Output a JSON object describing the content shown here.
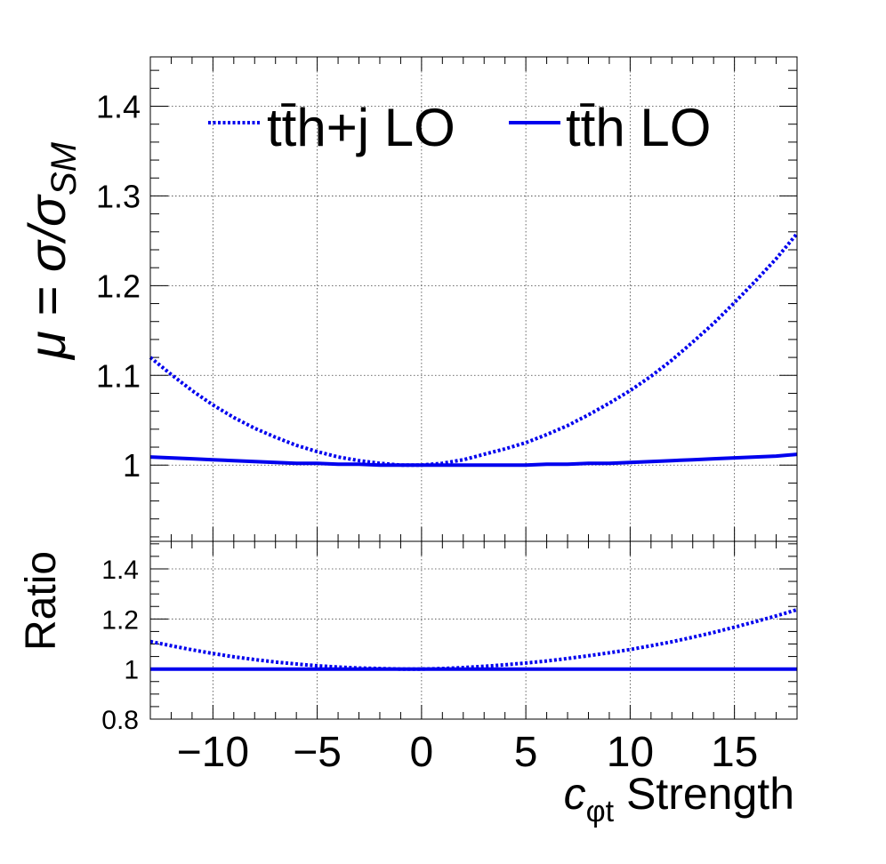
{
  "chart_data": [
    {
      "type": "line",
      "panel": "top",
      "ylabel_main": "μ = σ/σ",
      "ylabel_sub": "SM",
      "xlim": [
        -13,
        18
      ],
      "ylim": [
        0.915,
        1.455
      ],
      "yticks": [
        1,
        1.1,
        1.2,
        1.3,
        1.4
      ],
      "ytick_labels": [
        "1",
        "1.1",
        "1.2",
        "1.3",
        "1.4"
      ],
      "grid": true,
      "legend_position": "top",
      "series": [
        {
          "name": "tt̄h+j LO",
          "style": "dotted",
          "color": "#0000ee",
          "x": [
            -13,
            -12,
            -11,
            -10,
            -9,
            -8,
            -7,
            -6,
            -5,
            -4,
            -3,
            -2,
            -1,
            0,
            1,
            2,
            3,
            4,
            5,
            6,
            7,
            8,
            9,
            10,
            11,
            12,
            13,
            14,
            15,
            16,
            17,
            18
          ],
          "y": [
            1.12,
            1.101,
            1.083,
            1.067,
            1.053,
            1.041,
            1.031,
            1.022,
            1.015,
            1.009,
            1.005,
            1.002,
            1.0,
            1.0,
            1.002,
            1.006,
            1.012,
            1.018,
            1.025,
            1.034,
            1.044,
            1.056,
            1.069,
            1.083,
            1.099,
            1.117,
            1.137,
            1.158,
            1.181,
            1.205,
            1.23,
            1.258
          ]
        },
        {
          "name": "tt̄h LO",
          "style": "solid",
          "color": "#0000ee",
          "x": [
            -13,
            -12,
            -11,
            -10,
            -9,
            -8,
            -7,
            -6,
            -5,
            -4,
            -3,
            -2,
            -1,
            0,
            1,
            2,
            3,
            4,
            5,
            6,
            7,
            8,
            9,
            10,
            11,
            12,
            13,
            14,
            15,
            16,
            17,
            18
          ],
          "y": [
            1.009,
            1.008,
            1.007,
            1.006,
            1.005,
            1.004,
            1.003,
            1.002,
            1.002,
            1.001,
            1.001,
            1.0,
            1.0,
            1.0,
            1.0,
            1.0,
            1.0,
            1.0,
            1.0,
            1.001,
            1.001,
            1.002,
            1.002,
            1.003,
            1.004,
            1.005,
            1.006,
            1.007,
            1.008,
            1.009,
            1.01,
            1.012
          ]
        }
      ]
    },
    {
      "type": "line",
      "panel": "bottom",
      "ylabel": "Ratio",
      "xlabel_main": "c",
      "xlabel_sub": "φt",
      "xlabel_rest": " Strength",
      "xlim": [
        -13,
        18
      ],
      "ylim": [
        0.8,
        1.51
      ],
      "xticks": [
        -10,
        -5,
        0,
        5,
        10,
        15
      ],
      "xtick_labels": [
        "−10",
        "−5",
        "0",
        "5",
        "10",
        "15"
      ],
      "yticks": [
        0.8,
        1,
        1.2,
        1.4
      ],
      "ytick_labels": [
        "0.8",
        "1",
        "1.2",
        "1.4"
      ],
      "grid": true,
      "series": [
        {
          "name": "tt̄h+j LO",
          "style": "dotted",
          "color": "#0000ee",
          "x": [
            -13,
            -12,
            -11,
            -10,
            -9,
            -8,
            -7,
            -6,
            -5,
            -4,
            -3,
            -2,
            -1,
            0,
            1,
            2,
            3,
            4,
            5,
            6,
            7,
            8,
            9,
            10,
            11,
            12,
            13,
            14,
            15,
            16,
            17,
            18
          ],
          "y": [
            1.11,
            1.093,
            1.077,
            1.062,
            1.049,
            1.038,
            1.028,
            1.02,
            1.013,
            1.008,
            1.004,
            1.002,
            1.0,
            1.0,
            1.002,
            1.006,
            1.011,
            1.017,
            1.024,
            1.032,
            1.042,
            1.053,
            1.065,
            1.078,
            1.093,
            1.109,
            1.127,
            1.146,
            1.167,
            1.189,
            1.212,
            1.237
          ]
        },
        {
          "name": "tt̄h LO",
          "style": "solid",
          "color": "#0000ee",
          "x": [
            -13,
            18
          ],
          "y": [
            1.0,
            1.0
          ]
        }
      ]
    }
  ]
}
